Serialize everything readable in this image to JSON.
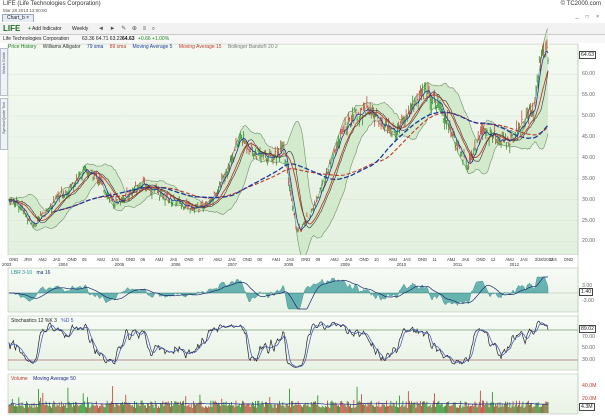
{
  "window": {
    "title": "LIFE (Life Technologies Corporation)",
    "timestamp": "Mar 28 2013 12:00:00",
    "brand": "© TC2000.com"
  },
  "tab": {
    "label": "Chart_b ×"
  },
  "window_controls": "_ □ ×",
  "toolbar": {
    "symbol": "LIFE",
    "add_indicator_plus": "+",
    "add_indicator": "Add Indicator",
    "period": "Weekly",
    "tools_icons": "◄ ► ✎ ⊕ ≡ ⌕"
  },
  "quote": {
    "name": "Life Technologies Corporation",
    "values": "63.36 64.71 63.22",
    "last": "64.63",
    "change": "+0.66 +1.00%"
  },
  "legend": [
    {
      "label": "Price History",
      "color": "#1a7a1a"
    },
    {
      "label": "Williams Alligator",
      "color": "#333333"
    },
    {
      "label": "79 sma",
      "color": "#1a3a9e"
    },
    {
      "label": "89 sma",
      "color": "#c0392b"
    },
    {
      "label": "Moving Average 5",
      "color": "#1a3a9e"
    },
    {
      "label": "Moving Average 15",
      "color": "#c0392b"
    },
    {
      "label": "Bollinger Bands® 20 2",
      "color": "#777777"
    }
  ],
  "side_buttons": [
    "Watch Guide",
    "Symbol/Quote Tool"
  ],
  "price_axis": [
    "60.00",
    "55.00",
    "50.00",
    "45.00",
    "40.00",
    "35.00",
    "30.00",
    "25.00",
    "20.00"
  ],
  "last_price_tag": "64.63",
  "x_labels": {
    "quarters": [
      "OND",
      "JFM",
      "AMJ",
      "JAS",
      "OND",
      "05",
      "AMJ",
      "JAS",
      "OND",
      "06",
      "AMJ",
      "JAS",
      "OND",
      "07",
      "AMJ",
      "JAS",
      "OND",
      "08",
      "AMJ",
      "JAS",
      "OND",
      "09",
      "AMJ",
      "JAS",
      "OND",
      "10",
      "AMJ",
      "JAS",
      "OND",
      "11",
      "AMJ",
      "JAS",
      "OND",
      "12",
      "AMJ",
      "JAS",
      "3/28/2013",
      "JAS",
      "OND"
    ],
    "years": [
      "2003",
      "2004",
      "2005",
      "2006",
      "2007",
      "2008",
      "2009",
      "2010",
      "2011",
      "2012"
    ]
  },
  "lbr_panel": {
    "label": "LBR 3-10",
    "ma_label": "ma 16",
    "axis": [
      "3.00",
      "0.00",
      "-3.00"
    ],
    "tag": "1.40"
  },
  "stoch_panel": {
    "label": "Stochastics 12 %K 3",
    "d_label": "%D 5",
    "axis": [
      "80.00",
      "70.00",
      "50.00",
      "30.00"
    ],
    "tag": "89.02"
  },
  "volume_panel": {
    "label": "Volume",
    "ma_label": "Moving Average 50",
    "axis": [
      "40.0M",
      "20.0M"
    ],
    "tag": "4.3M"
  },
  "colors": {
    "price_bg": "#eef6ec",
    "band_fill": "#cfe8c8",
    "up_bar": "#1c8a1c",
    "down_bar": "#c0392b",
    "sma_blue": "#1a3a9e",
    "sma_red": "#c0392b"
  },
  "chart_data": {
    "type": "bar",
    "title": "LIFE (Life Technologies Corporation)",
    "ylim": [
      17,
      67
    ],
    "price_series": [
      {
        "date": "2003-10",
        "close": 30
      },
      {
        "date": "2003-12",
        "close": 29
      },
      {
        "date": "2004-03",
        "close": 24
      },
      {
        "date": "2004-05",
        "close": 26
      },
      {
        "date": "2004-08",
        "close": 30
      },
      {
        "date": "2004-11",
        "close": 33
      },
      {
        "date": "2005-02",
        "close": 37
      },
      {
        "date": "2005-05",
        "close": 35
      },
      {
        "date": "2005-08",
        "close": 29
      },
      {
        "date": "2005-11",
        "close": 31
      },
      {
        "date": "2006-02",
        "close": 34
      },
      {
        "date": "2006-05",
        "close": 32
      },
      {
        "date": "2006-08",
        "close": 30
      },
      {
        "date": "2006-11",
        "close": 29
      },
      {
        "date": "2007-02",
        "close": 28
      },
      {
        "date": "2007-05",
        "close": 30
      },
      {
        "date": "2007-08",
        "close": 37
      },
      {
        "date": "2007-11",
        "close": 45
      },
      {
        "date": "2008-02",
        "close": 41
      },
      {
        "date": "2008-05",
        "close": 40
      },
      {
        "date": "2008-08",
        "close": 42
      },
      {
        "date": "2008-11",
        "close": 22
      },
      {
        "date": "2009-02",
        "close": 27
      },
      {
        "date": "2009-05",
        "close": 35
      },
      {
        "date": "2009-08",
        "close": 45
      },
      {
        "date": "2009-11",
        "close": 50
      },
      {
        "date": "2010-02",
        "close": 52
      },
      {
        "date": "2010-05",
        "close": 48
      },
      {
        "date": "2010-08",
        "close": 46
      },
      {
        "date": "2010-11",
        "close": 52
      },
      {
        "date": "2011-02",
        "close": 56
      },
      {
        "date": "2011-05",
        "close": 53
      },
      {
        "date": "2011-08",
        "close": 45
      },
      {
        "date": "2011-11",
        "close": 38
      },
      {
        "date": "2012-02",
        "close": 46
      },
      {
        "date": "2012-05",
        "close": 45
      },
      {
        "date": "2012-08",
        "close": 44
      },
      {
        "date": "2012-11",
        "close": 49
      },
      {
        "date": "2013-01",
        "close": 52
      },
      {
        "date": "2013-02",
        "close": 62
      },
      {
        "date": "2013-03",
        "close": 64.63
      }
    ]
  }
}
